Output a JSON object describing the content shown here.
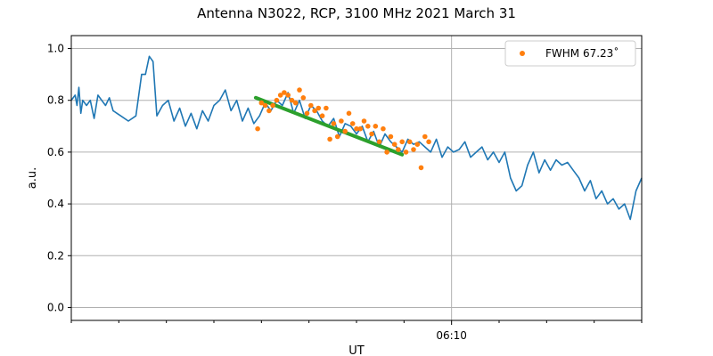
{
  "chart_data": {
    "type": "line",
    "title": "Antenna N3022, RCP, 3100 MHz 2021 March 31",
    "xlabel": "UT",
    "ylabel": "a.u.",
    "ylim": [
      -0.05,
      1.05
    ],
    "yticks": [
      0.0,
      0.2,
      0.4,
      0.6,
      0.8,
      1.0
    ],
    "ytick_labels": [
      "0.0",
      "0.2",
      "0.4",
      "0.6",
      "0.8",
      "1.0"
    ],
    "xaxis_unit": "minutes relative to 06:10 UT",
    "xlim": [
      -10,
      5
    ],
    "xticks": [
      0
    ],
    "xtick_labels": [
      "06:10"
    ],
    "x_minor_ticks": [
      -10,
      -8.75,
      -7.5,
      -6.25,
      -5,
      -3.75,
      -2.5,
      -1.25,
      1.25,
      2.5,
      3.75,
      5
    ],
    "grid": true,
    "legend_position": "top-right",
    "legend": [
      {
        "label": "FWHM 67.23$^\\circ$",
        "display": "FWHM 67.23˚",
        "color": "#ff7f0e",
        "marker": "dot"
      }
    ],
    "colors": {
      "series": "#1f77b4",
      "points": "#ff7f0e",
      "fit": "#2ca02c",
      "grid": "#b0b0b0"
    },
    "series": [
      {
        "style": "line",
        "color": "#1f77b4",
        "points": [
          [
            -10,
            0.8
          ],
          [
            -9.9,
            0.82
          ],
          [
            -9.85,
            0.78
          ],
          [
            -9.8,
            0.85
          ],
          [
            -9.75,
            0.75
          ],
          [
            -9.7,
            0.8
          ],
          [
            -9.6,
            0.78
          ],
          [
            -9.5,
            0.8
          ],
          [
            -9.4,
            0.73
          ],
          [
            -9.3,
            0.82
          ],
          [
            -9.2,
            0.8
          ],
          [
            -9.1,
            0.78
          ],
          [
            -9.0,
            0.81
          ],
          [
            -8.9,
            0.76
          ],
          [
            -8.8,
            0.75
          ],
          [
            -8.7,
            0.74
          ],
          [
            -8.5,
            0.72
          ],
          [
            -8.3,
            0.74
          ],
          [
            -8.15,
            0.9
          ],
          [
            -8.05,
            0.9
          ],
          [
            -7.95,
            0.97
          ],
          [
            -7.85,
            0.95
          ],
          [
            -7.75,
            0.74
          ],
          [
            -7.6,
            0.78
          ],
          [
            -7.45,
            0.8
          ],
          [
            -7.3,
            0.72
          ],
          [
            -7.15,
            0.77
          ],
          [
            -7.0,
            0.7
          ],
          [
            -6.85,
            0.75
          ],
          [
            -6.7,
            0.69
          ],
          [
            -6.55,
            0.76
          ],
          [
            -6.4,
            0.72
          ],
          [
            -6.25,
            0.78
          ],
          [
            -6.1,
            0.8
          ],
          [
            -5.95,
            0.84
          ],
          [
            -5.8,
            0.76
          ],
          [
            -5.65,
            0.8
          ],
          [
            -5.5,
            0.72
          ],
          [
            -5.35,
            0.77
          ],
          [
            -5.2,
            0.71
          ],
          [
            -5.05,
            0.74
          ],
          [
            -4.9,
            0.79
          ],
          [
            -4.75,
            0.76
          ],
          [
            -4.6,
            0.8
          ],
          [
            -4.45,
            0.78
          ],
          [
            -4.3,
            0.83
          ],
          [
            -4.15,
            0.75
          ],
          [
            -4.0,
            0.8
          ],
          [
            -3.85,
            0.73
          ],
          [
            -3.7,
            0.78
          ],
          [
            -3.55,
            0.76
          ],
          [
            -3.4,
            0.72
          ],
          [
            -3.25,
            0.7
          ],
          [
            -3.1,
            0.73
          ],
          [
            -2.95,
            0.66
          ],
          [
            -2.8,
            0.71
          ],
          [
            -2.65,
            0.7
          ],
          [
            -2.5,
            0.67
          ],
          [
            -2.35,
            0.7
          ],
          [
            -2.2,
            0.64
          ],
          [
            -2.05,
            0.68
          ],
          [
            -1.9,
            0.62
          ],
          [
            -1.75,
            0.67
          ],
          [
            -1.6,
            0.64
          ],
          [
            -1.45,
            0.62
          ],
          [
            -1.3,
            0.6
          ],
          [
            -1.15,
            0.65
          ],
          [
            -1.0,
            0.63
          ],
          [
            -0.85,
            0.64
          ],
          [
            -0.7,
            0.62
          ],
          [
            -0.55,
            0.6
          ],
          [
            -0.4,
            0.65
          ],
          [
            -0.25,
            0.58
          ],
          [
            -0.1,
            0.62
          ],
          [
            0.05,
            0.6
          ],
          [
            0.2,
            0.61
          ],
          [
            0.35,
            0.64
          ],
          [
            0.5,
            0.58
          ],
          [
            0.65,
            0.6
          ],
          [
            0.8,
            0.62
          ],
          [
            0.95,
            0.57
          ],
          [
            1.1,
            0.6
          ],
          [
            1.25,
            0.56
          ],
          [
            1.4,
            0.6
          ],
          [
            1.55,
            0.5
          ],
          [
            1.7,
            0.45
          ],
          [
            1.85,
            0.47
          ],
          [
            2.0,
            0.55
          ],
          [
            2.15,
            0.6
          ],
          [
            2.3,
            0.52
          ],
          [
            2.45,
            0.57
          ],
          [
            2.6,
            0.53
          ],
          [
            2.75,
            0.57
          ],
          [
            2.9,
            0.55
          ],
          [
            3.05,
            0.56
          ],
          [
            3.2,
            0.53
          ],
          [
            3.35,
            0.5
          ],
          [
            3.5,
            0.45
          ],
          [
            3.65,
            0.49
          ],
          [
            3.8,
            0.42
          ],
          [
            3.95,
            0.45
          ],
          [
            4.1,
            0.4
          ],
          [
            4.25,
            0.42
          ],
          [
            4.4,
            0.38
          ],
          [
            4.55,
            0.4
          ],
          [
            4.7,
            0.34
          ],
          [
            4.85,
            0.45
          ],
          [
            5.0,
            0.5
          ]
        ]
      },
      {
        "style": "points",
        "name": "FWHM 67.23˚",
        "color": "#ff7f0e",
        "points": [
          [
            -5.1,
            0.69
          ],
          [
            -5.0,
            0.79
          ],
          [
            -4.9,
            0.78
          ],
          [
            -4.8,
            0.76
          ],
          [
            -4.7,
            0.78
          ],
          [
            -4.6,
            0.8
          ],
          [
            -4.5,
            0.82
          ],
          [
            -4.4,
            0.83
          ],
          [
            -4.3,
            0.82
          ],
          [
            -4.2,
            0.8
          ],
          [
            -4.1,
            0.79
          ],
          [
            -4.0,
            0.84
          ],
          [
            -3.9,
            0.81
          ],
          [
            -3.8,
            0.75
          ],
          [
            -3.7,
            0.78
          ],
          [
            -3.6,
            0.76
          ],
          [
            -3.5,
            0.77
          ],
          [
            -3.4,
            0.74
          ],
          [
            -3.3,
            0.77
          ],
          [
            -3.2,
            0.65
          ],
          [
            -3.1,
            0.71
          ],
          [
            -3.0,
            0.66
          ],
          [
            -2.9,
            0.72
          ],
          [
            -2.8,
            0.68
          ],
          [
            -2.7,
            0.75
          ],
          [
            -2.6,
            0.71
          ],
          [
            -2.5,
            0.69
          ],
          [
            -2.4,
            0.69
          ],
          [
            -2.3,
            0.72
          ],
          [
            -2.2,
            0.7
          ],
          [
            -2.1,
            0.67
          ],
          [
            -2.0,
            0.7
          ],
          [
            -1.9,
            0.64
          ],
          [
            -1.8,
            0.69
          ],
          [
            -1.7,
            0.6
          ],
          [
            -1.6,
            0.66
          ],
          [
            -1.5,
            0.63
          ],
          [
            -1.4,
            0.61
          ],
          [
            -1.3,
            0.64
          ],
          [
            -1.2,
            0.6
          ],
          [
            -1.1,
            0.64
          ],
          [
            -1.0,
            0.61
          ],
          [
            -0.9,
            0.63
          ],
          [
            -0.8,
            0.54
          ],
          [
            -0.7,
            0.66
          ],
          [
            -0.6,
            0.64
          ]
        ]
      },
      {
        "style": "fit",
        "color": "#2ca02c",
        "points": [
          [
            -5.15,
            0.81
          ],
          [
            -1.3,
            0.59
          ]
        ]
      }
    ]
  }
}
